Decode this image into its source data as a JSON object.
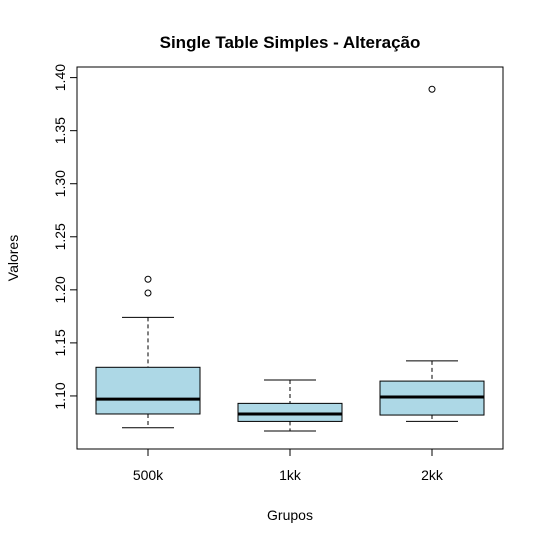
{
  "chart_data": {
    "type": "boxplot",
    "title": "Single Table Simples - Alteração",
    "xlabel": "Grupos",
    "ylabel": "Valores",
    "ylim": [
      1.05,
      1.41
    ],
    "yticks": [
      "1.10",
      "1.15",
      "1.20",
      "1.25",
      "1.30",
      "1.35",
      "1.40"
    ],
    "ytick_values": [
      1.1,
      1.15,
      1.2,
      1.25,
      1.3,
      1.35,
      1.4
    ],
    "grid": false,
    "categories": [
      "500k",
      "1kk",
      "2kk"
    ],
    "boxes": [
      {
        "category": "500k",
        "whisker_low": 1.07,
        "q1": 1.083,
        "median": 1.097,
        "q3": 1.127,
        "whisker_high": 1.174,
        "outliers": [
          1.197,
          1.21
        ]
      },
      {
        "category": "1kk",
        "whisker_low": 1.067,
        "q1": 1.076,
        "median": 1.083,
        "q3": 1.093,
        "whisker_high": 1.115,
        "outliers": []
      },
      {
        "category": "2kk",
        "whisker_low": 1.076,
        "q1": 1.082,
        "median": 1.099,
        "q3": 1.114,
        "whisker_high": 1.133,
        "outliers": [
          1.389
        ]
      }
    ],
    "colors": {
      "box_fill": "#add8e6",
      "stroke": "#000000",
      "background": "#ffffff"
    }
  }
}
